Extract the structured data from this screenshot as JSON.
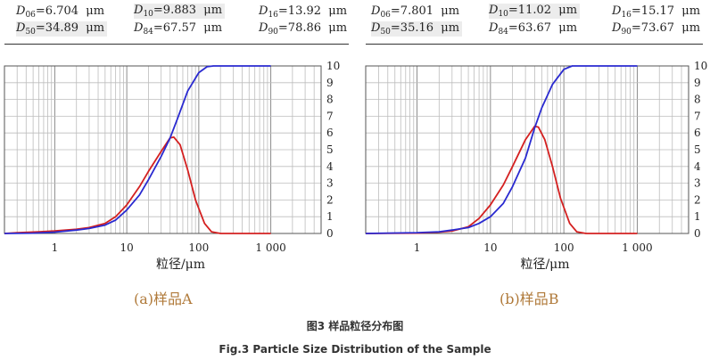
{
  "panels": [
    {
      "stats_row1": [
        {
          "sub": "06",
          "value": "6.704",
          "unit": "μm"
        },
        {
          "sub": "10",
          "value": "9.883",
          "unit": "μm"
        },
        {
          "sub": "16",
          "value": "13.92",
          "unit": "μm"
        }
      ],
      "stats_row2": [
        {
          "sub": "50",
          "value": "34.89",
          "unit": "μm"
        },
        {
          "sub": "84",
          "value": "67.57",
          "unit": "μm"
        },
        {
          "sub": "90",
          "value": "78.86",
          "unit": "μm"
        }
      ],
      "label": "(a)样品A"
    },
    {
      "stats_row1": [
        {
          "sub": "06",
          "value": "7.801",
          "unit": "μm"
        },
        {
          "sub": "10",
          "value": "11.02",
          "unit": "μm"
        },
        {
          "sub": "16",
          "value": "15.17",
          "unit": "μm"
        }
      ],
      "stats_row2": [
        {
          "sub": "50",
          "value": "35.16",
          "unit": "μm"
        },
        {
          "sub": "84",
          "value": "63.67",
          "unit": "μm"
        },
        {
          "sub": "90",
          "value": "73.67",
          "unit": "μm"
        }
      ],
      "label": "(b)样品B"
    }
  ],
  "caption_cn": "图3 样品粒径分布图",
  "caption_en": "Fig.3 Particle Size Distribution of the Sample",
  "chart_data": [
    {
      "type": "line",
      "x_scale": "log",
      "xlim": [
        0.2,
        5000
      ],
      "ylim": [
        0,
        10
      ],
      "xlabel": "粒径/μm",
      "x_ticks": [
        {
          "v": 1,
          "label": "1"
        },
        {
          "v": 10,
          "label": "10"
        },
        {
          "v": 100,
          "label": "100"
        },
        {
          "v": 1000,
          "label": "1 000"
        }
      ],
      "y_ticks": [
        0,
        1,
        2,
        3,
        4,
        5,
        6,
        7,
        8,
        9,
        10
      ],
      "grid": true,
      "series": [
        {
          "color": "#d42020",
          "points": [
            [
              0.2,
              0
            ],
            [
              0.3,
              0.05
            ],
            [
              0.6,
              0.1
            ],
            [
              1,
              0.15
            ],
            [
              2,
              0.25
            ],
            [
              3,
              0.35
            ],
            [
              5,
              0.6
            ],
            [
              7,
              1.0
            ],
            [
              10,
              1.7
            ],
            [
              15,
              2.8
            ],
            [
              20,
              3.7
            ],
            [
              30,
              4.9
            ],
            [
              40,
              5.7
            ],
            [
              45,
              5.75
            ],
            [
              55,
              5.3
            ],
            [
              70,
              3.8
            ],
            [
              90,
              2.0
            ],
            [
              120,
              0.6
            ],
            [
              150,
              0.1
            ],
            [
              200,
              0
            ],
            [
              1000,
              0
            ]
          ]
        },
        {
          "color": "#2a2ad0",
          "points": [
            [
              0.2,
              0
            ],
            [
              0.5,
              0.02
            ],
            [
              1,
              0.08
            ],
            [
              2,
              0.2
            ],
            [
              3,
              0.3
            ],
            [
              5,
              0.5
            ],
            [
              7,
              0.8
            ],
            [
              10,
              1.4
            ],
            [
              15,
              2.3
            ],
            [
              20,
              3.2
            ],
            [
              30,
              4.6
            ],
            [
              40,
              5.7
            ],
            [
              50,
              6.8
            ],
            [
              70,
              8.5
            ],
            [
              100,
              9.6
            ],
            [
              130,
              9.95
            ],
            [
              160,
              10
            ],
            [
              300,
              10
            ],
            [
              1000,
              10
            ]
          ]
        }
      ]
    },
    {
      "type": "line",
      "x_scale": "log",
      "xlim": [
        0.2,
        5000
      ],
      "ylim": [
        0,
        10
      ],
      "xlabel": "粒径/μm",
      "x_ticks": [
        {
          "v": 1,
          "label": "1"
        },
        {
          "v": 10,
          "label": "10"
        },
        {
          "v": 100,
          "label": "100"
        },
        {
          "v": 1000,
          "label": "1 000"
        }
      ],
      "y_ticks": [
        0,
        1,
        2,
        3,
        4,
        5,
        6,
        7,
        8,
        9,
        10
      ],
      "grid": true,
      "series": [
        {
          "color": "#d42020",
          "points": [
            [
              0.2,
              0
            ],
            [
              1,
              0.02
            ],
            [
              2,
              0.08
            ],
            [
              3,
              0.15
            ],
            [
              5,
              0.4
            ],
            [
              7,
              0.9
            ],
            [
              10,
              1.7
            ],
            [
              15,
              2.9
            ],
            [
              20,
              4.0
            ],
            [
              30,
              5.6
            ],
            [
              40,
              6.4
            ],
            [
              45,
              6.35
            ],
            [
              55,
              5.6
            ],
            [
              70,
              4.0
            ],
            [
              90,
              2.1
            ],
            [
              120,
              0.6
            ],
            [
              150,
              0.1
            ],
            [
              200,
              0
            ],
            [
              1000,
              0
            ]
          ]
        },
        {
          "color": "#2a2ad0",
          "points": [
            [
              0.2,
              0
            ],
            [
              1,
              0.05
            ],
            [
              2,
              0.1
            ],
            [
              3,
              0.2
            ],
            [
              5,
              0.35
            ],
            [
              7,
              0.6
            ],
            [
              10,
              1.0
            ],
            [
              15,
              1.8
            ],
            [
              20,
              2.8
            ],
            [
              30,
              4.5
            ],
            [
              40,
              6.3
            ],
            [
              50,
              7.5
            ],
            [
              70,
              8.9
            ],
            [
              100,
              9.8
            ],
            [
              130,
              10
            ],
            [
              300,
              10
            ],
            [
              1000,
              10
            ]
          ]
        }
      ]
    }
  ]
}
